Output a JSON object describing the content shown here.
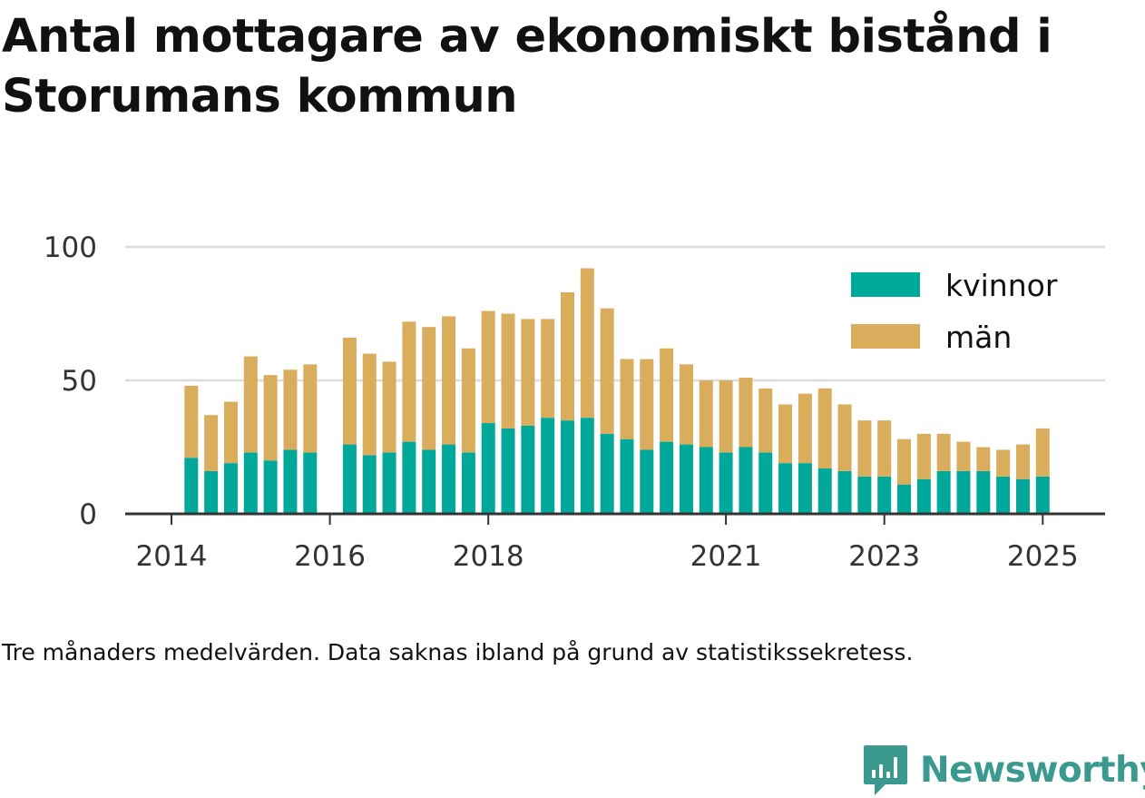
{
  "title": "Antal mottagare av ekonomiskt bistånd i Storumans kommun",
  "caption": "Tre månaders medelvärden. Data saknas ibland på grund av statistikssekretess.",
  "brand": "Newsworthy",
  "colors": {
    "kvinnor": "#00a89a",
    "man": "#d9ad5c",
    "axis": "#333333",
    "grid": "#dddddd",
    "brand": "#3a9a8f"
  },
  "chart_data": {
    "type": "bar",
    "stacked": true,
    "x_unit": "quarter",
    "x_ticks": [
      "2014",
      "2016",
      "2018",
      "2021",
      "2023",
      "2025"
    ],
    "y_ticks": [
      "0",
      "50",
      "100"
    ],
    "ylim": [
      0,
      100
    ],
    "grid": true,
    "legend_position": "top-right",
    "x": [
      "2014-Q2",
      "2014-Q3",
      "2014-Q4",
      "2015-Q1",
      "2015-Q2",
      "2015-Q3",
      "2015-Q4",
      "2016-Q2",
      "2016-Q3",
      "2016-Q4",
      "2017-Q1",
      "2017-Q2",
      "2017-Q3",
      "2017-Q4",
      "2018-Q1",
      "2018-Q2",
      "2018-Q3",
      "2018-Q4",
      "2019-Q1",
      "2019-Q2",
      "2019-Q3",
      "2019-Q4",
      "2020-Q1",
      "2020-Q2",
      "2020-Q3",
      "2020-Q4",
      "2021-Q1",
      "2021-Q2",
      "2021-Q3",
      "2021-Q4",
      "2022-Q1",
      "2022-Q2",
      "2022-Q3",
      "2022-Q4",
      "2023-Q1",
      "2023-Q2",
      "2023-Q3",
      "2023-Q4",
      "2024-Q1",
      "2024-Q2",
      "2024-Q3",
      "2024-Q4",
      "2025-Q1"
    ],
    "series": [
      {
        "name": "kvinnor",
        "values": [
          21,
          16,
          19,
          23,
          20,
          24,
          23,
          26,
          22,
          23,
          27,
          24,
          26,
          23,
          34,
          32,
          33,
          36,
          35,
          36,
          30,
          28,
          24,
          27,
          26,
          25,
          23,
          25,
          23,
          19,
          19,
          17,
          16,
          14,
          14,
          11,
          13,
          16,
          16,
          16,
          14,
          13,
          14
        ]
      },
      {
        "name": "män",
        "values": [
          27,
          21,
          23,
          36,
          32,
          30,
          33,
          40,
          38,
          34,
          45,
          46,
          48,
          39,
          42,
          43,
          40,
          37,
          48,
          56,
          47,
          30,
          34,
          35,
          30,
          25,
          27,
          26,
          24,
          22,
          26,
          30,
          25,
          21,
          21,
          17,
          17,
          14,
          11,
          9,
          10,
          13,
          18
        ]
      }
    ]
  }
}
